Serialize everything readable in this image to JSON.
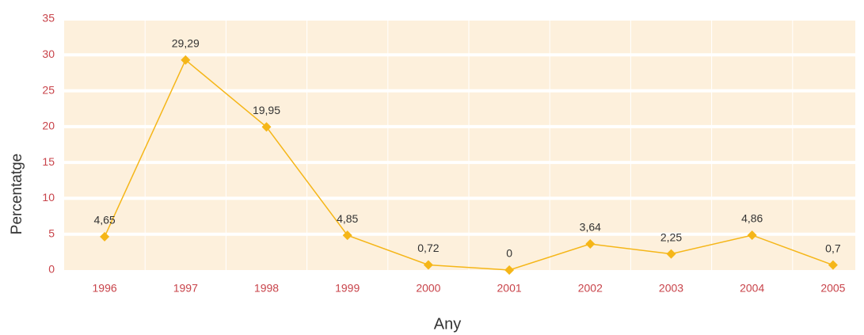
{
  "chart_data": {
    "type": "line",
    "xlabel": "Any",
    "ylabel": "Percentatge",
    "categories": [
      "1996",
      "1997",
      "1998",
      "1999",
      "2000",
      "2001",
      "2002",
      "2003",
      "2004",
      "2005"
    ],
    "series": [
      {
        "name": "Percentatge",
        "color": "#f5b618",
        "values": [
          4.65,
          29.29,
          19.95,
          4.85,
          0.72,
          0,
          3.64,
          2.25,
          4.86,
          0.7
        ],
        "value_labels": [
          "4,65",
          "29,29",
          "19,95",
          "4,85",
          "0,72",
          "0",
          "3,64",
          "2,25",
          "4,86",
          "0,7"
        ]
      }
    ],
    "ylim": [
      0,
      35
    ],
    "yticks": [
      0,
      5,
      10,
      15,
      20,
      25,
      30,
      35
    ],
    "grid": true
  }
}
